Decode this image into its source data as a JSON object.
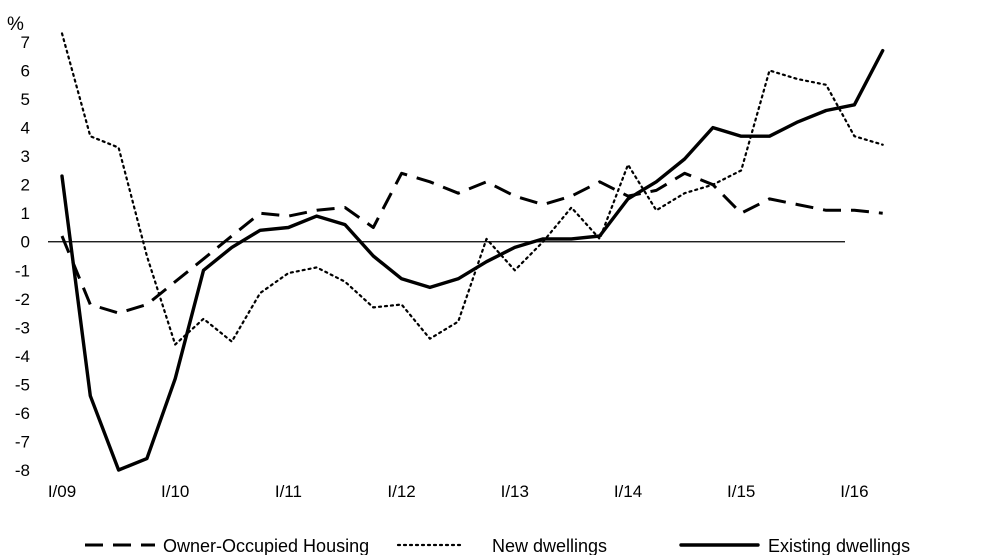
{
  "chart_data": {
    "type": "line",
    "title": "",
    "ylabel": "%",
    "xlabel": "",
    "ylim": [
      -8,
      7
    ],
    "yticks": [
      "-8",
      "-7",
      "-6",
      "-5",
      "-4",
      "-3",
      "-2",
      "-1",
      "0",
      "1",
      "2",
      "3",
      "4",
      "5",
      "6",
      "7"
    ],
    "x": [
      "I/09",
      "II/09",
      "III/09",
      "IV/09",
      "I/10",
      "II/10",
      "III/10",
      "IV/10",
      "I/11",
      "II/11",
      "III/11",
      "IV/11",
      "I/12",
      "II/12",
      "III/12",
      "IV/12",
      "I/13",
      "II/13",
      "III/13",
      "IV/13",
      "I/14",
      "II/14",
      "III/14",
      "IV/14",
      "I/15",
      "II/15",
      "III/15",
      "IV/15",
      "I/16",
      "II/16"
    ],
    "xtick_labels": [
      "I/09",
      "I/10",
      "I/11",
      "I/12",
      "I/13",
      "I/14",
      "I/15",
      "I/16"
    ],
    "grid": false,
    "legend_position": "bottom",
    "series": [
      {
        "name": "Owner-Occupied Housing",
        "style": "dashed",
        "values": [
          0.2,
          -2.2,
          -2.5,
          -2.2,
          -1.4,
          -0.6,
          0.2,
          1.0,
          0.9,
          1.1,
          1.2,
          0.5,
          2.4,
          2.1,
          1.7,
          2.1,
          1.6,
          1.3,
          1.6,
          2.1,
          1.6,
          1.8,
          2.4,
          2.0,
          1.0,
          1.5,
          1.3,
          1.1,
          1.1,
          1.0
        ]
      },
      {
        "name": "New dwellings",
        "style": "dotted",
        "values": [
          7.3,
          3.7,
          3.3,
          -0.5,
          -3.6,
          -2.7,
          -3.5,
          -1.8,
          -1.1,
          -0.9,
          -1.4,
          -2.3,
          -2.2,
          -3.4,
          -2.8,
          0.1,
          -1.0,
          0.0,
          1.2,
          0.1,
          2.7,
          1.1,
          1.7,
          2.0,
          2.5,
          6.0,
          5.7,
          5.5,
          3.7,
          3.4
        ]
      },
      {
        "name": "Existing dwellings",
        "style": "solid",
        "values": [
          2.3,
          -5.4,
          -8.0,
          -7.6,
          -4.8,
          -1.0,
          -0.2,
          0.4,
          0.5,
          0.9,
          0.6,
          -0.5,
          -1.3,
          -1.6,
          -1.3,
          -0.7,
          -0.2,
          0.1,
          0.1,
          0.2,
          1.5,
          2.1,
          2.9,
          4.0,
          3.7,
          3.7,
          4.2,
          4.6,
          4.8,
          6.7
        ]
      }
    ]
  }
}
